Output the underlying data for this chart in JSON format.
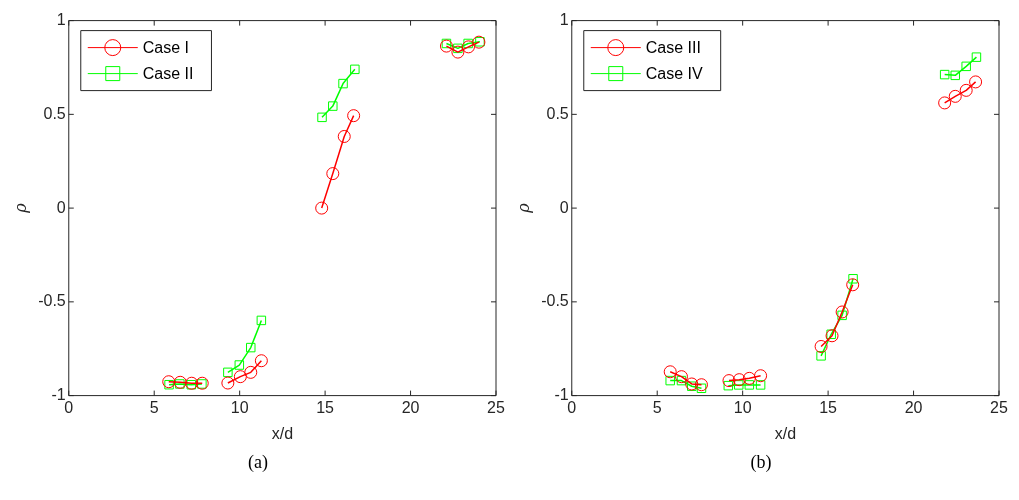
{
  "chart_data": [
    {
      "type": "line",
      "xlabel": "x/d",
      "ylabel": "ρ",
      "xlim": [
        0,
        25
      ],
      "ylim": [
        -1,
        1
      ],
      "xticks": [
        0,
        5,
        10,
        15,
        20,
        25
      ],
      "yticks": [
        -1,
        -0.5,
        0,
        0.5,
        1
      ],
      "grid": false,
      "legend": "top left",
      "annotations": [
        "(a)"
      ],
      "series": [
        {
          "name": "Case I",
          "color": "#ff0000",
          "marker": "circle",
          "x": [
            5.85,
            6.52,
            7.19,
            7.81,
            null,
            9.31,
            10.04,
            10.65,
            11.27,
            null,
            14.8,
            15.45,
            16.12,
            16.67,
            null,
            22.1,
            22.77,
            23.39,
            24.0
          ],
          "values": [
            -0.926,
            -0.929,
            -0.934,
            -0.934,
            null,
            -0.933,
            -0.899,
            -0.876,
            -0.814,
            null,
            0,
            0.184,
            0.382,
            0.493,
            null,
            0.864,
            0.832,
            0.86,
            0.885
          ]
        },
        {
          "name": "Case II",
          "color": "#00ff00",
          "marker": "square",
          "x": [
            5.87,
            6.5,
            7.17,
            7.79,
            null,
            9.31,
            9.98,
            10.65,
            11.27,
            null,
            14.82,
            15.45,
            16.05,
            16.74,
            null,
            22.1,
            22.77,
            23.37,
            24.06
          ],
          "values": [
            -0.942,
            -0.938,
            -0.942,
            -0.938,
            null,
            -0.876,
            -0.837,
            -0.744,
            -0.599,
            null,
            0.484,
            0.544,
            0.664,
            0.74,
            null,
            0.878,
            0.852,
            0.878,
            0.887
          ]
        }
      ]
    },
    {
      "type": "line",
      "xlabel": "x/d",
      "ylabel": "ρ",
      "xlim": [
        0,
        25
      ],
      "ylim": [
        -1,
        1
      ],
      "xticks": [
        0,
        5,
        10,
        15,
        20,
        25
      ],
      "yticks": [
        -1,
        -0.5,
        0,
        0.5,
        1
      ],
      "grid": false,
      "legend": "top left",
      "annotations": [
        "(b)"
      ],
      "series": [
        {
          "name": "Case III",
          "color": "#ff0000",
          "marker": "circle",
          "x": [
            5.76,
            6.42,
            7.02,
            7.59,
            null,
            9.2,
            9.8,
            10.39,
            11.05,
            null,
            14.59,
            15.23,
            15.82,
            16.44,
            null,
            21.82,
            22.44,
            23.08,
            23.63
          ],
          "values": [
            -0.873,
            -0.899,
            -0.938,
            -0.942,
            null,
            -0.92,
            -0.915,
            -0.908,
            -0.894,
            null,
            -0.738,
            -0.681,
            -0.554,
            -0.409,
            null,
            0.561,
            0.596,
            0.628,
            0.673
          ]
        },
        {
          "name": "Case IV",
          "color": "#00ff00",
          "marker": "square",
          "x": [
            5.76,
            6.42,
            7.02,
            7.59,
            null,
            9.16,
            9.77,
            10.39,
            11.05,
            null,
            14.59,
            15.18,
            15.82,
            16.46,
            null,
            21.82,
            22.44,
            23.08,
            23.68
          ],
          "values": [
            -0.92,
            -0.92,
            -0.95,
            -0.961,
            null,
            -0.947,
            -0.943,
            -0.943,
            -0.943,
            null,
            -0.788,
            -0.673,
            -0.572,
            -0.377,
            null,
            0.712,
            0.708,
            0.756,
            0.805
          ]
        }
      ]
    }
  ]
}
